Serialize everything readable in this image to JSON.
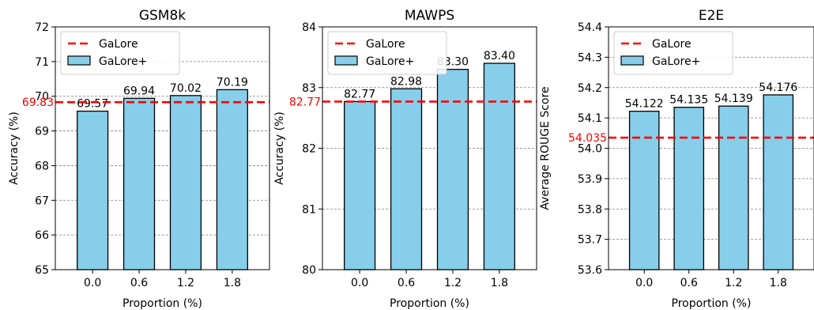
{
  "colors": {
    "bar_fill": "#87ceeb",
    "bar_edge": "#000000",
    "reference": "#ff0000",
    "grid": "#808080"
  },
  "legend": {
    "baseline": "GaLore",
    "ours": "GaLore+",
    "placement": "top-left"
  },
  "chart_data": [
    {
      "type": "bar",
      "title": "GSM8k",
      "xlabel": "Proportion (%)",
      "ylabel": "Accuracy (%)",
      "categories": [
        "0.0",
        "0.6",
        "1.2",
        "1.8"
      ],
      "values": [
        69.57,
        69.94,
        70.02,
        70.19
      ],
      "value_labels": [
        "69.57",
        "69.94",
        "70.02",
        "70.19"
      ],
      "series_name": "GaLore+",
      "reference": {
        "name": "GaLore",
        "value": 69.83,
        "label": "69.83"
      },
      "ylim": [
        65,
        72
      ],
      "yticks": [
        "65",
        "66",
        "67",
        "68",
        "69",
        "70",
        "71",
        "72"
      ],
      "grid": "y dashed"
    },
    {
      "type": "bar",
      "title": "MAWPS",
      "xlabel": "Proportion (%)",
      "ylabel": "Accuracy (%)",
      "categories": [
        "0.0",
        "0.6",
        "1.2",
        "1.8"
      ],
      "values": [
        82.77,
        82.98,
        83.3,
        83.4
      ],
      "value_labels": [
        "82.77",
        "82.98",
        "83.30",
        "83.40"
      ],
      "series_name": "GaLore+",
      "reference": {
        "name": "GaLore",
        "value": 82.77,
        "label": "82.77"
      },
      "ylim": [
        80,
        84
      ],
      "yticks": [
        "80",
        "81",
        "82",
        "83",
        "84"
      ],
      "grid": "y dashed"
    },
    {
      "type": "bar",
      "title": "E2E",
      "xlabel": "Proportion (%)",
      "ylabel": "Average ROUGE Score",
      "categories": [
        "0.0",
        "0.6",
        "1.2",
        "1.8"
      ],
      "values": [
        54.122,
        54.135,
        54.139,
        54.176
      ],
      "value_labels": [
        "54.122",
        "54.135",
        "54.139",
        "54.176"
      ],
      "series_name": "GaLore+",
      "reference": {
        "name": "GaLore",
        "value": 54.035,
        "label": "54.035"
      },
      "ylim": [
        53.6,
        54.4
      ],
      "yticks": [
        "53.6",
        "53.7",
        "53.8",
        "53.9",
        "54.0",
        "54.1",
        "54.2",
        "54.3",
        "54.4"
      ],
      "grid": "y dashed"
    }
  ]
}
